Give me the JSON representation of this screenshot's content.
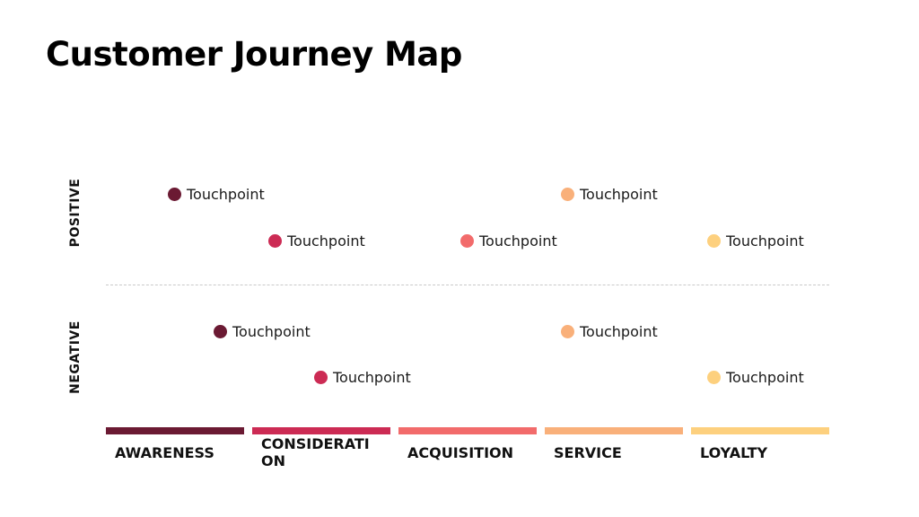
{
  "title": "Customer Journey Map",
  "axis": {
    "positive": "POSITIVE",
    "negative": "NEGATIVE"
  },
  "stages": [
    {
      "name": "AWARENESS",
      "color": "#6b1a33"
    },
    {
      "name": "CONSIDERATION",
      "color": "#cc2b54"
    },
    {
      "name": "ACQUISITION",
      "color": "#f26b6b"
    },
    {
      "name": "SERVICE",
      "color": "#f9b07a"
    },
    {
      "name": "LOYALTY",
      "color": "#fdd07e"
    }
  ],
  "touchpoints": {
    "positive": [
      {
        "label": "Touchpoint",
        "color": "#6b1a33"
      },
      {
        "label": "Touchpoint",
        "color": "#cc2b54"
      },
      {
        "label": "Touchpoint",
        "color": "#f26b6b"
      },
      {
        "label": "Touchpoint",
        "color": "#f9b07a"
      },
      {
        "label": "Touchpoint",
        "color": "#fdd07e"
      }
    ],
    "negative": [
      {
        "label": "Touchpoint",
        "color": "#6b1a33"
      },
      {
        "label": "Touchpoint",
        "color": "#cc2b54"
      },
      {
        "label": "Touchpoint",
        "color": "#f9b07a"
      },
      {
        "label": "Touchpoint",
        "color": "#fdd07e"
      }
    ]
  }
}
